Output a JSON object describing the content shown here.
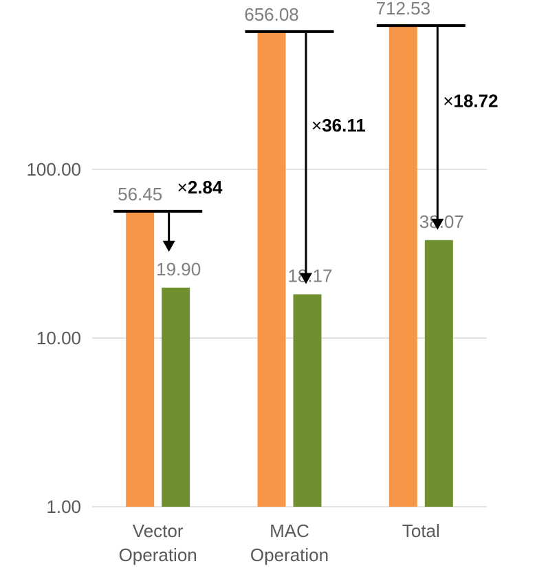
{
  "chart_data": {
    "type": "bar",
    "yscale": "log",
    "ylim": [
      1,
      1000
    ],
    "yticks": [
      1,
      10,
      100
    ],
    "ytick_labels": [
      "1.00",
      "10.00",
      "100.00"
    ],
    "grid": true,
    "categories": [
      [
        "Vector",
        "Operation"
      ],
      [
        "MAC",
        "Operation"
      ],
      [
        "Total"
      ]
    ],
    "series": [
      {
        "color": "#f79646",
        "values": [
          56.45,
          656.08,
          712.53
        ],
        "labels": [
          "56.45",
          "656.08",
          "712.53"
        ]
      },
      {
        "color": "#70902f",
        "values": [
          19.9,
          18.17,
          38.07
        ],
        "labels": [
          "19.90",
          "18.17",
          "38.07"
        ]
      }
    ],
    "annotations": [
      {
        "prefix": "×",
        "text": "2.84"
      },
      {
        "prefix": "×",
        "text": "36.11"
      },
      {
        "prefix": "×",
        "text": "18.72"
      }
    ]
  }
}
